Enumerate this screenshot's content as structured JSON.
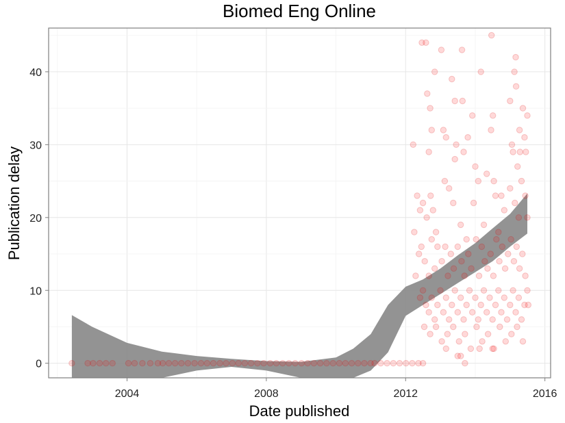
{
  "chart_data": {
    "type": "scatter",
    "title": "Biomed Eng Online",
    "xlabel": "Date published",
    "ylabel": "Publication delay",
    "x_ticks": [
      "2004",
      "2008",
      "2012",
      "2016"
    ],
    "y_ticks": [
      "0",
      "10",
      "20",
      "30",
      "40"
    ],
    "xlim": [
      "2001-10-01",
      "2016-03-01"
    ],
    "ylim": [
      -2,
      46
    ],
    "grid": true,
    "point_color": "#ff0000",
    "ribbon_color": "#8a8a8a",
    "series": [
      {
        "type": "scatter",
        "points": [
          [
            "2002-06-01",
            0
          ],
          [
            "2002-11-15",
            0
          ],
          [
            "2003-01-10",
            0
          ],
          [
            "2003-03-20",
            0
          ],
          [
            "2003-05-25",
            0
          ],
          [
            "2003-08-01",
            0
          ],
          [
            "2004-01-15",
            0
          ],
          [
            "2004-03-20",
            0
          ],
          [
            "2004-06-10",
            0
          ],
          [
            "2004-09-01",
            0
          ],
          [
            "2004-11-20",
            0
          ],
          [
            "2005-01-10",
            0
          ],
          [
            "2005-03-15",
            0
          ],
          [
            "2005-05-20",
            0
          ],
          [
            "2005-07-25",
            0
          ],
          [
            "2005-10-01",
            0
          ],
          [
            "2005-12-10",
            0
          ],
          [
            "2006-02-15",
            0
          ],
          [
            "2006-04-20",
            0
          ],
          [
            "2006-06-25",
            0
          ],
          [
            "2006-09-01",
            0
          ],
          [
            "2006-11-05",
            0
          ],
          [
            "2007-01-10",
            0
          ],
          [
            "2007-03-15",
            0
          ],
          [
            "2007-05-20",
            0
          ],
          [
            "2007-07-25",
            0
          ],
          [
            "2007-09-30",
            0
          ],
          [
            "2007-12-05",
            0
          ],
          [
            "2008-02-10",
            0
          ],
          [
            "2008-04-15",
            0
          ],
          [
            "2008-06-20",
            0
          ],
          [
            "2008-08-25",
            0
          ],
          [
            "2008-10-30",
            0
          ],
          [
            "2009-01-05",
            0
          ],
          [
            "2009-03-10",
            0
          ],
          [
            "2009-05-15",
            0
          ],
          [
            "2009-07-20",
            0
          ],
          [
            "2009-09-25",
            0
          ],
          [
            "2009-12-01",
            0
          ],
          [
            "2010-02-05",
            0
          ],
          [
            "2010-04-10",
            0
          ],
          [
            "2010-06-15",
            0
          ],
          [
            "2010-08-20",
            0
          ],
          [
            "2010-10-25",
            0
          ],
          [
            "2010-12-30",
            0
          ],
          [
            "2011-02-10",
            0
          ],
          [
            "2011-04-15",
            0
          ],
          [
            "2011-06-20",
            0
          ],
          [
            "2011-08-25",
            0
          ],
          [
            "2011-10-30",
            0
          ],
          [
            "2012-01-05",
            0
          ],
          [
            "2012-03-10",
            0
          ],
          [
            "2012-05-15",
            0
          ],
          [
            "2012-07-01",
            0
          ],
          [
            "2012-06-20",
            44
          ],
          [
            "2012-08-01",
            44
          ],
          [
            "2012-08-15",
            37
          ],
          [
            "2012-09-15",
            35
          ],
          [
            "2012-11-01",
            40
          ],
          [
            "2013-01-10",
            43
          ],
          [
            "2013-05-01",
            39
          ],
          [
            "2013-06-01",
            36
          ],
          [
            "2013-08-15",
            43
          ],
          [
            "2013-08-20",
            36
          ],
          [
            "2013-12-01",
            34
          ],
          [
            "2014-03-01",
            40
          ],
          [
            "2014-06-15",
            32
          ],
          [
            "2014-07-05",
            34
          ],
          [
            "2014-06-20",
            45
          ],
          [
            "2015-01-01",
            36
          ],
          [
            "2015-02-15",
            40
          ],
          [
            "2015-03-01",
            42
          ],
          [
            "2015-03-05",
            38
          ],
          [
            "2015-05-15",
            35
          ],
          [
            "2015-07-01",
            34
          ],
          [
            "2015-04-10",
            32
          ],
          [
            "2015-06-01",
            31
          ],
          [
            "2012-03-20",
            30
          ],
          [
            "2012-09-01",
            29
          ],
          [
            "2012-10-01",
            32
          ],
          [
            "2013-02-01",
            32
          ],
          [
            "2013-03-01",
            31
          ],
          [
            "2013-06-15",
            30
          ],
          [
            "2013-10-15",
            31
          ],
          [
            "2013-06-01",
            28
          ],
          [
            "2013-09-01",
            29
          ],
          [
            "2014-01-01",
            27
          ],
          [
            "2014-05-01",
            26
          ],
          [
            "2014-07-15",
            25
          ],
          [
            "2014-10-01",
            23
          ],
          [
            "2015-01-20",
            30
          ],
          [
            "2015-02-01",
            29
          ],
          [
            "2015-03-20",
            27
          ],
          [
            "2015-04-15",
            29
          ],
          [
            "2015-06-15",
            29
          ],
          [
            "2012-05-01",
            23
          ],
          [
            "2012-06-01",
            21
          ],
          [
            "2012-07-01",
            22
          ],
          [
            "2012-08-10",
            20
          ],
          [
            "2012-09-20",
            23
          ],
          [
            "2012-10-15",
            21
          ],
          [
            "2012-11-15",
            18
          ],
          [
            "2013-02-15",
            25
          ],
          [
            "2013-04-01",
            24
          ],
          [
            "2013-05-15",
            22
          ],
          [
            "2013-08-01",
            19
          ],
          [
            "2013-10-01",
            17
          ],
          [
            "2013-12-15",
            22
          ],
          [
            "2014-02-01",
            25
          ],
          [
            "2014-04-01",
            19
          ],
          [
            "2014-08-01",
            23
          ],
          [
            "2014-09-01",
            18
          ],
          [
            "2014-11-01",
            21
          ],
          [
            "2015-01-01",
            24
          ],
          [
            "2015-02-20",
            22
          ],
          [
            "2015-04-01",
            20
          ],
          [
            "2015-05-01",
            25
          ],
          [
            "2015-06-10",
            23
          ],
          [
            "2015-07-01",
            20
          ],
          [
            "2012-04-01",
            18
          ],
          [
            "2012-05-20",
            15
          ],
          [
            "2012-06-15",
            16
          ],
          [
            "2012-07-20",
            14
          ],
          [
            "2012-09-01",
            12
          ],
          [
            "2012-10-01",
            17
          ],
          [
            "2012-11-01",
            13
          ],
          [
            "2012-12-01",
            16
          ],
          [
            "2013-01-15",
            14
          ],
          [
            "2013-02-20",
            16
          ],
          [
            "2013-03-20",
            12
          ],
          [
            "2013-04-20",
            15
          ],
          [
            "2013-05-20",
            13
          ],
          [
            "2013-07-01",
            16
          ],
          [
            "2013-08-10",
            14
          ],
          [
            "2013-09-10",
            12
          ],
          [
            "2013-10-20",
            15
          ],
          [
            "2013-11-20",
            13
          ],
          [
            "2014-01-10",
            17
          ],
          [
            "2014-02-10",
            12
          ],
          [
            "2014-03-10",
            16
          ],
          [
            "2014-04-10",
            14
          ],
          [
            "2014-05-10",
            13
          ],
          [
            "2014-06-10",
            15
          ],
          [
            "2014-07-10",
            12
          ],
          [
            "2014-08-10",
            17
          ],
          [
            "2014-09-10",
            14
          ],
          [
            "2014-10-10",
            16
          ],
          [
            "2014-11-10",
            13
          ],
          [
            "2014-12-10",
            15
          ],
          [
            "2015-01-10",
            17
          ],
          [
            "2015-02-10",
            14
          ],
          [
            "2015-03-10",
            16
          ],
          [
            "2015-04-10",
            13
          ],
          [
            "2015-05-10",
            15
          ],
          [
            "2015-06-10",
            12
          ],
          [
            "2012-04-15",
            12
          ],
          [
            "2012-06-01",
            9
          ],
          [
            "2012-07-01",
            10
          ],
          [
            "2012-08-01",
            8
          ],
          [
            "2012-09-01",
            7
          ],
          [
            "2012-10-01",
            9
          ],
          [
            "2012-11-01",
            6
          ],
          [
            "2012-12-01",
            8
          ],
          [
            "2013-01-01",
            10
          ],
          [
            "2013-02-01",
            7
          ],
          [
            "2013-03-01",
            9
          ],
          [
            "2013-04-01",
            6
          ],
          [
            "2013-05-01",
            8
          ],
          [
            "2013-06-01",
            10
          ],
          [
            "2013-07-01",
            7
          ],
          [
            "2013-08-01",
            9
          ],
          [
            "2013-09-01",
            6
          ],
          [
            "2013-10-01",
            8
          ],
          [
            "2013-11-01",
            10
          ],
          [
            "2013-12-01",
            7
          ],
          [
            "2014-01-01",
            9
          ],
          [
            "2014-02-01",
            6
          ],
          [
            "2014-03-01",
            8
          ],
          [
            "2014-04-01",
            10
          ],
          [
            "2014-05-01",
            7
          ],
          [
            "2014-06-01",
            9
          ],
          [
            "2014-07-01",
            6
          ],
          [
            "2014-08-01",
            8
          ],
          [
            "2014-09-01",
            10
          ],
          [
            "2014-10-01",
            7
          ],
          [
            "2014-11-01",
            9
          ],
          [
            "2014-12-01",
            6
          ],
          [
            "2015-01-01",
            8
          ],
          [
            "2015-02-01",
            10
          ],
          [
            "2015-03-01",
            7
          ],
          [
            "2015-04-01",
            9
          ],
          [
            "2015-05-01",
            6
          ],
          [
            "2015-06-01",
            8
          ],
          [
            "2015-07-01",
            10
          ],
          [
            "2015-07-10",
            8
          ],
          [
            "2012-07-15",
            5
          ],
          [
            "2012-09-15",
            4
          ],
          [
            "2012-11-15",
            5
          ],
          [
            "2013-01-15",
            3
          ],
          [
            "2013-03-15",
            4
          ],
          [
            "2013-05-15",
            5
          ],
          [
            "2013-07-15",
            3
          ],
          [
            "2013-09-15",
            4
          ],
          [
            "2013-11-15",
            2
          ],
          [
            "2014-01-15",
            5
          ],
          [
            "2014-03-15",
            3
          ],
          [
            "2014-05-15",
            4
          ],
          [
            "2014-07-15",
            2
          ],
          [
            "2014-09-15",
            5
          ],
          [
            "2014-11-15",
            3
          ],
          [
            "2015-01-15",
            4
          ],
          [
            "2015-03-15",
            5
          ],
          [
            "2015-05-15",
            3
          ],
          [
            "2013-03-01",
            2
          ],
          [
            "2013-07-01",
            1
          ],
          [
            "2013-08-01",
            1
          ],
          [
            "2013-09-15",
            0
          ],
          [
            "2014-02-15",
            2
          ],
          [
            "2014-07-01",
            2
          ]
        ]
      },
      {
        "type": "ribbon",
        "x": [
          "2002-06-01",
          "2003-01-01",
          "2004-01-01",
          "2005-01-01",
          "2006-01-01",
          "2007-01-01",
          "2008-01-01",
          "2009-01-01",
          "2010-01-01",
          "2010-07-01",
          "2011-01-01",
          "2011-07-01",
          "2012-01-01",
          "2012-07-01",
          "2013-01-01",
          "2013-07-01",
          "2014-01-01",
          "2014-07-01",
          "2015-01-01",
          "2015-07-01"
        ],
        "ymin": [
          -2,
          -2,
          -2,
          -2,
          -1,
          -0.5,
          -1,
          -2,
          -2,
          -2,
          -1,
          1.5,
          6.5,
          8,
          9.5,
          11,
          12.5,
          14,
          16,
          17.8
        ],
        "ymax": [
          6.6,
          5,
          2.8,
          1.6,
          1,
          0.6,
          0.3,
          0.2,
          0.8,
          2,
          4,
          8,
          10.5,
          11.5,
          13,
          14.8,
          16.5,
          18.5,
          20.5,
          23.3
        ]
      }
    ]
  }
}
